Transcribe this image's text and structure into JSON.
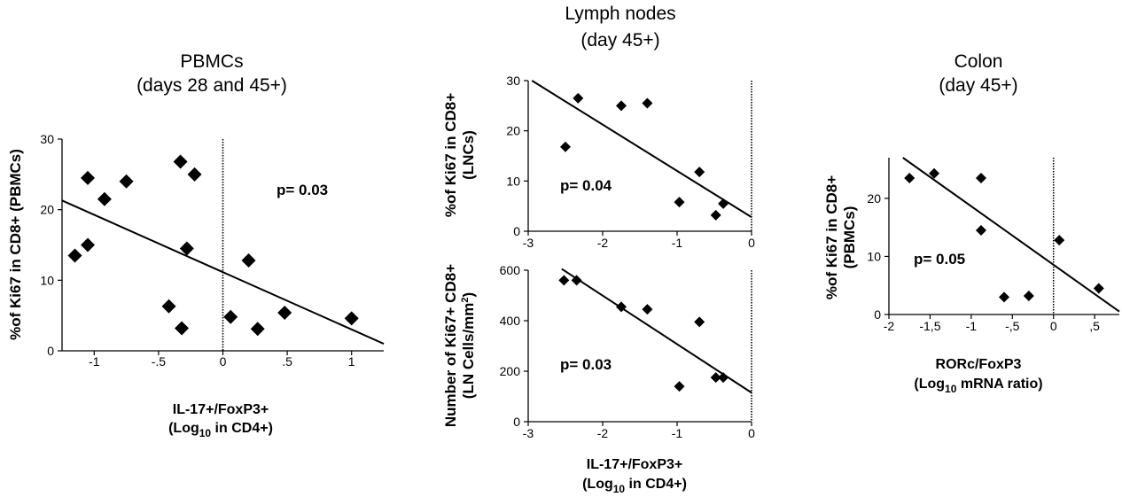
{
  "colors": {
    "marker": "#000000",
    "line": "#000000",
    "zero_line": "#000000",
    "background": "#ffffff"
  },
  "icons": {
    "marker": "diamond"
  },
  "panels": {
    "pbmc": {
      "title_lines": [
        "PBMCs",
        "(days 28 and 45+)"
      ],
      "ylabel_lines": [
        "%of Ki67 in  CD8+ (PBMCs)"
      ],
      "xlabel_lines": [
        "IL-17+/FoxP3+",
        "(Log",
        "10",
        " in CD4+)"
      ],
      "p_text": "p= 0.03"
    },
    "ln_top": {
      "title_lines": [
        "Lymph nodes",
        "(day 45+)"
      ],
      "ylabel_lines": [
        "%of Ki67 in CD8+",
        "(LNCs)"
      ],
      "p_text": "p= 0.04"
    },
    "ln_bottom": {
      "ylabel_lines": [
        "Number of Ki67+ CD8+",
        "(LN Cells/mm",
        "2",
        ")"
      ],
      "xlabel_lines": [
        "IL-17+/FoxP3+",
        "(Log",
        "10",
        " in CD4+)"
      ],
      "p_text": "p= 0.03"
    },
    "colon": {
      "title_lines": [
        "Colon",
        "(day 45+)"
      ],
      "ylabel_lines": [
        "%of Ki67 in  CD8+",
        "(PBMCs)"
      ],
      "xlabel_lines": [
        "RORc/FoxP3",
        "(Log",
        "10",
        " mRNA ratio)"
      ],
      "p_text": "p= 0.05"
    }
  },
  "chart_data": [
    {
      "id": "pbmc",
      "type": "scatter",
      "title": "PBMCs (days 28 and 45+)",
      "xlabel": "IL-17+/FoxP3+ (Log10 in CD4+)",
      "ylabel": "%of Ki67 in  CD8+ (PBMCs)",
      "xlim": [
        -1.25,
        1.25
      ],
      "ylim": [
        0,
        30
      ],
      "xticks": [
        -1,
        -0.5,
        0,
        0.5,
        1
      ],
      "xtick_labels": [
        "-1",
        "-.5",
        "0",
        ".5",
        "1"
      ],
      "yticks": [
        0,
        10,
        20,
        30
      ],
      "ytick_labels": [
        "0",
        "10",
        "20",
        "30"
      ],
      "grid": false,
      "zero_line_x": 0,
      "annotation": "p= 0.03",
      "points": [
        {
          "x": -1.15,
          "y": 13.5
        },
        {
          "x": -1.05,
          "y": 24.5
        },
        {
          "x": -1.05,
          "y": 15.0
        },
        {
          "x": -0.92,
          "y": 21.5
        },
        {
          "x": -0.75,
          "y": 24.0
        },
        {
          "x": -0.42,
          "y": 6.3
        },
        {
          "x": -0.33,
          "y": 26.8
        },
        {
          "x": -0.32,
          "y": 3.2
        },
        {
          "x": -0.28,
          "y": 14.5
        },
        {
          "x": -0.22,
          "y": 25.0
        },
        {
          "x": 0.06,
          "y": 4.8
        },
        {
          "x": 0.2,
          "y": 12.8
        },
        {
          "x": 0.27,
          "y": 3.1
        },
        {
          "x": 0.48,
          "y": 5.4
        },
        {
          "x": 1.0,
          "y": 4.6
        }
      ],
      "fit_line": {
        "x1": -1.25,
        "y1": 21.3,
        "x2": 1.25,
        "y2": 1.0
      }
    },
    {
      "id": "ln_top",
      "type": "scatter",
      "title": "Lymph nodes (day 45+)",
      "xlabel": "",
      "ylabel": "%of Ki67 in CD8+ (LNCs)",
      "xlim": [
        -3,
        0
      ],
      "ylim": [
        0,
        30
      ],
      "xticks": [
        -3,
        -2,
        -1,
        0
      ],
      "xtick_labels": [
        "-3",
        "-2",
        "-1",
        "0"
      ],
      "yticks": [
        0,
        10,
        20,
        30
      ],
      "ytick_labels": [
        "0",
        "10",
        "20",
        "30"
      ],
      "grid": false,
      "zero_line_x": 0,
      "annotation": "p= 0.04",
      "points": [
        {
          "x": -2.5,
          "y": 16.8
        },
        {
          "x": -2.33,
          "y": 26.5
        },
        {
          "x": -1.75,
          "y": 25.0
        },
        {
          "x": -1.4,
          "y": 25.5
        },
        {
          "x": -0.97,
          "y": 5.8
        },
        {
          "x": -0.7,
          "y": 11.8
        },
        {
          "x": -0.48,
          "y": 3.2
        },
        {
          "x": -0.38,
          "y": 5.5
        }
      ],
      "fit_line": {
        "x1": -2.95,
        "y1": 30.0,
        "x2": 0.0,
        "y2": 2.8
      }
    },
    {
      "id": "ln_bottom",
      "type": "scatter",
      "title": "",
      "xlabel": "IL-17+/FoxP3+ (Log10 in CD4+)",
      "ylabel": "Number of Ki67+ CD8+ (LN Cells/mm2)",
      "xlim": [
        -3,
        0
      ],
      "ylim": [
        0,
        600
      ],
      "xticks": [
        -3,
        -2,
        -1,
        0
      ],
      "xtick_labels": [
        "-3",
        "-2",
        "-1",
        "0"
      ],
      "yticks": [
        0,
        200,
        400,
        600
      ],
      "ytick_labels": [
        "0",
        "200",
        "400",
        "600"
      ],
      "grid": false,
      "zero_line_x": 0,
      "annotation": "p= 0.03",
      "points": [
        {
          "x": -2.52,
          "y": 560
        },
        {
          "x": -2.35,
          "y": 560
        },
        {
          "x": -1.75,
          "y": 455
        },
        {
          "x": -1.4,
          "y": 445
        },
        {
          "x": -0.97,
          "y": 140
        },
        {
          "x": -0.7,
          "y": 395
        },
        {
          "x": -0.48,
          "y": 175
        },
        {
          "x": -0.38,
          "y": 175
        }
      ],
      "fit_line": {
        "x1": -2.55,
        "y1": 605,
        "x2": 0.0,
        "y2": 115
      }
    },
    {
      "id": "colon",
      "type": "scatter",
      "title": "Colon (day 45+)",
      "xlabel": "RORc/FoxP3 (Log10 mRNA ratio)",
      "ylabel": "%of Ki67 in  CD8+ (PBMCs)",
      "xlim": [
        -2,
        0.8
      ],
      "ylim": [
        0,
        27
      ],
      "xticks": [
        -2,
        -1.5,
        -1,
        -0.5,
        0,
        0.5
      ],
      "xtick_labels": [
        "-2",
        "-1,5",
        "-1",
        "-,5",
        "0",
        ",5"
      ],
      "yticks": [
        0,
        10,
        20
      ],
      "ytick_labels": [
        "0",
        "10",
        "20"
      ],
      "grid": false,
      "zero_line_x": 0,
      "annotation": "p= 0.05",
      "points": [
        {
          "x": -1.75,
          "y": 23.5
        },
        {
          "x": -1.45,
          "y": 24.3
        },
        {
          "x": -0.88,
          "y": 23.5
        },
        {
          "x": -0.88,
          "y": 14.5
        },
        {
          "x": -0.6,
          "y": 3.0
        },
        {
          "x": -0.3,
          "y": 3.2
        },
        {
          "x": 0.07,
          "y": 12.8
        },
        {
          "x": 0.55,
          "y": 4.5
        }
      ],
      "fit_line": {
        "x1": -1.83,
        "y1": 27.0,
        "x2": 0.8,
        "y2": 0.5
      }
    }
  ]
}
